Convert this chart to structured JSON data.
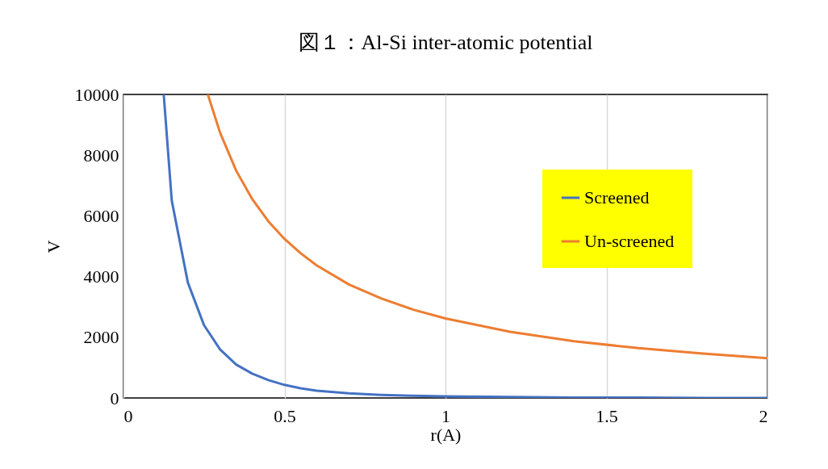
{
  "chart_data": {
    "type": "line",
    "title": "図１：Al-Si inter-atomic potential",
    "xlabel": "r(A)",
    "ylabel": "V",
    "xlim": [
      0,
      2
    ],
    "xticks": [
      0,
      0.5,
      1,
      1.5,
      2
    ],
    "ylim": [
      0,
      10000
    ],
    "yticks": [
      0,
      2000,
      4000,
      6000,
      8000,
      10000
    ],
    "grid": "x",
    "legend": "top right",
    "marker": "none",
    "line_style": "solid",
    "series": [
      {
        "name": "Screened",
        "color": "#4472c4",
        "x": [
          0.125,
          0.15,
          0.2,
          0.25,
          0.3,
          0.35,
          0.4,
          0.45,
          0.5,
          0.55,
          0.6,
          0.7,
          0.8,
          0.9,
          1.0,
          1.2,
          1.4,
          1.6,
          1.8,
          2.0
        ],
        "values": [
          10000,
          6500,
          3800,
          2400,
          1600,
          1100,
          800,
          590,
          430,
          320,
          240,
          150,
          100,
          70,
          50,
          30,
          10,
          10,
          0,
          0
        ]
      },
      {
        "name": "Un-screened",
        "color": "#ed7d31",
        "x": [
          0.262,
          0.3,
          0.35,
          0.4,
          0.45,
          0.5,
          0.55,
          0.6,
          0.7,
          0.8,
          0.9,
          1.0,
          1.2,
          1.4,
          1.6,
          1.8,
          2.0
        ],
        "values": [
          10000,
          8740,
          7490,
          6550,
          5820,
          5240,
          4770,
          4370,
          3740,
          3280,
          2910,
          2620,
          2180,
          1870,
          1640,
          1460,
          1310
        ]
      }
    ]
  }
}
